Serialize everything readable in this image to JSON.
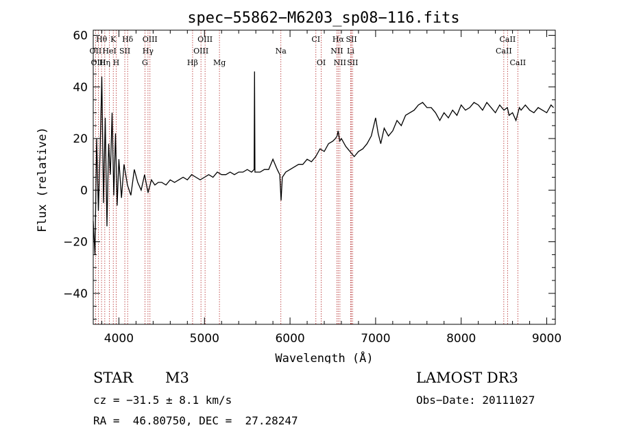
{
  "chart_data": {
    "type": "line",
    "title": "spec−55862−M6203_sp08−116.fits",
    "xlabel": "Wavelength (Å)",
    "ylabel": "Flux (relative)",
    "xlim": [
      3700,
      9100
    ],
    "ylim": [
      -52,
      62
    ],
    "x_ticks": [
      4000,
      5000,
      6000,
      7000,
      8000,
      9000
    ],
    "x_tick_labels": [
      "4000",
      "5000",
      "6000",
      "7000",
      "8000",
      "9000"
    ],
    "y_ticks": [
      -40,
      -20,
      0,
      20,
      40,
      60
    ],
    "y_tick_labels": [
      "−40",
      "−20",
      "0",
      "20",
      "40",
      "60"
    ],
    "series": [
      {
        "name": "spectrum",
        "x": [
          3700,
          3720,
          3740,
          3760,
          3780,
          3800,
          3820,
          3840,
          3860,
          3880,
          3900,
          3920,
          3940,
          3960,
          3980,
          4000,
          4030,
          4060,
          4100,
          4140,
          4180,
          4220,
          4260,
          4300,
          4340,
          4380,
          4420,
          4460,
          4500,
          4550,
          4600,
          4650,
          4700,
          4750,
          4800,
          4850,
          4900,
          4950,
          5000,
          5050,
          5100,
          5150,
          5200,
          5250,
          5300,
          5350,
          5400,
          5450,
          5500,
          5550,
          5580,
          5585,
          5590,
          5650,
          5700,
          5750,
          5800,
          5850,
          5880,
          5895,
          5910,
          5950,
          6000,
          6050,
          6100,
          6150,
          6200,
          6250,
          6300,
          6350,
          6400,
          6450,
          6500,
          6530,
          6550,
          6563,
          6580,
          6600,
          6650,
          6700,
          6750,
          6800,
          6850,
          6900,
          6950,
          7000,
          7030,
          7060,
          7100,
          7150,
          7200,
          7250,
          7300,
          7350,
          7400,
          7450,
          7500,
          7550,
          7600,
          7650,
          7700,
          7750,
          7800,
          7850,
          7900,
          7950,
          8000,
          8050,
          8100,
          8150,
          8200,
          8250,
          8300,
          8350,
          8400,
          8450,
          8500,
          8540,
          8560,
          8600,
          8640,
          8680,
          8700,
          8750,
          8800,
          8850,
          8900,
          8950,
          9000,
          9050,
          9080
        ],
        "y": [
          -12,
          -25,
          20,
          -8,
          15,
          44,
          -5,
          28,
          -14,
          18,
          6,
          30,
          -2,
          22,
          -6,
          12,
          -3,
          10,
          2,
          -2,
          8,
          3,
          0,
          6,
          -1,
          4,
          2,
          3,
          3,
          2,
          4,
          3,
          4,
          5,
          4,
          6,
          5,
          4,
          5,
          6,
          5,
          7,
          6,
          6,
          7,
          6,
          7,
          7,
          8,
          7,
          8,
          46,
          7,
          7,
          8,
          8,
          12,
          8,
          6,
          -4,
          5,
          7,
          8,
          9,
          10,
          10,
          12,
          11,
          13,
          16,
          15,
          18,
          19,
          20,
          21,
          23,
          19,
          20,
          17,
          15,
          13,
          15,
          16,
          18,
          21,
          28,
          22,
          18,
          24,
          21,
          23,
          27,
          25,
          29,
          30,
          31,
          33,
          34,
          32,
          32,
          30,
          27,
          30,
          28,
          31,
          29,
          33,
          31,
          32,
          34,
          33,
          31,
          34,
          32,
          30,
          33,
          31,
          32,
          29,
          30,
          27,
          32,
          31,
          33,
          31,
          30,
          32,
          31,
          30,
          33,
          32
        ]
      }
    ],
    "lines": [
      {
        "label": "Hθ",
        "x": 3797,
        "row": 1
      },
      {
        "label": "K",
        "x": 3934,
        "row": 1
      },
      {
        "label": "Hδ",
        "x": 4102,
        "row": 1
      },
      {
        "label": "OIII",
        "x": 4363,
        "row": 1
      },
      {
        "label": "OIII",
        "x": 5007,
        "row": 1
      },
      {
        "label": "CI",
        "x": 6302,
        "row": 1
      },
      {
        "label": "Hα",
        "x": 6563,
        "row": 1
      },
      {
        "label": "SII",
        "x": 6717,
        "row": 1
      },
      {
        "label": "CaII",
        "x": 8542,
        "row": 1
      },
      {
        "label": "OII",
        "x": 3727,
        "row": 2
      },
      {
        "label": "HeI",
        "x": 3889,
        "row": 2
      },
      {
        "label": "SII",
        "x": 4069,
        "row": 2
      },
      {
        "label": "Hγ",
        "x": 4340,
        "row": 2
      },
      {
        "label": "OIII",
        "x": 4959,
        "row": 2
      },
      {
        "label": "Na",
        "x": 5893,
        "row": 2
      },
      {
        "label": "NII",
        "x": 6548,
        "row": 2
      },
      {
        "label": "Li",
        "x": 6708,
        "row": 2
      },
      {
        "label": "CaII",
        "x": 8498,
        "row": 2
      },
      {
        "label": "OIII",
        "x": 3760,
        "row": 3
      },
      {
        "label": "Hη",
        "x": 3835,
        "row": 3
      },
      {
        "label": "H",
        "x": 3968,
        "row": 3
      },
      {
        "label": "G",
        "x": 4304,
        "row": 3
      },
      {
        "label": "Hβ",
        "x": 4861,
        "row": 3
      },
      {
        "label": "Mg",
        "x": 5175,
        "row": 3
      },
      {
        "label": "OI",
        "x": 6364,
        "row": 3
      },
      {
        "label": "NII",
        "x": 6583,
        "row": 3
      },
      {
        "label": "SII",
        "x": 6731,
        "row": 3
      },
      {
        "label": "CaII",
        "x": 8662,
        "row": 3
      }
    ]
  },
  "info": {
    "object_class": "STAR",
    "subclass": "M3",
    "survey": "LAMOST DR3",
    "cz": "cz = −31.5 ± 8.1 km/s",
    "obs_date": "Obs−Date: 20111027",
    "coords": "RA =  46.80750, DEC =  27.28247"
  },
  "colors": {
    "line_marker": "#b22222",
    "spectrum": "#000000"
  }
}
